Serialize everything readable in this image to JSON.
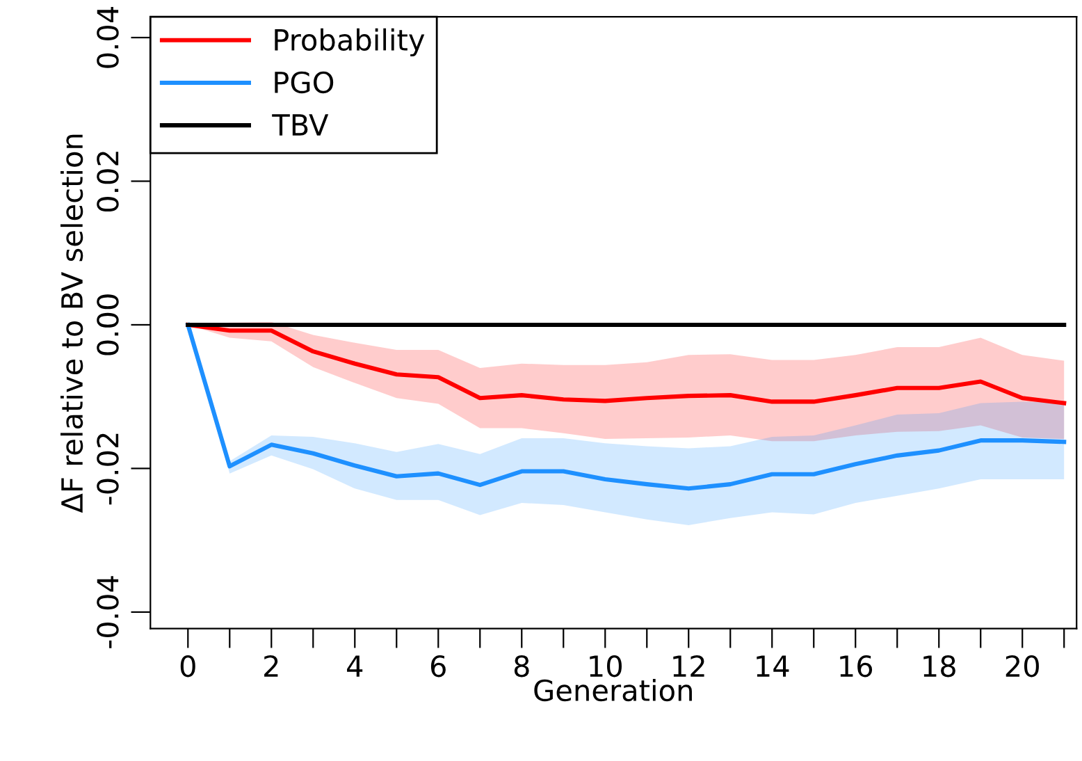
{
  "chart_data": {
    "type": "line",
    "xlabel": "Generation",
    "ylabel": "ΔF relative to BV selection",
    "x": [
      0,
      1,
      2,
      3,
      4,
      5,
      6,
      7,
      8,
      9,
      10,
      11,
      12,
      13,
      14,
      15,
      16,
      17,
      18,
      19,
      20,
      21
    ],
    "series": [
      {
        "name": "Probability",
        "color": "#ff0000",
        "values": [
          0,
          -0.0008,
          -0.0008,
          -0.0037,
          -0.0054,
          -0.0069,
          -0.0073,
          -0.0102,
          -0.0098,
          -0.0104,
          -0.0106,
          -0.0102,
          -0.0099,
          -0.0098,
          -0.0107,
          -0.0107,
          -0.0098,
          -0.0088,
          -0.0088,
          -0.0079,
          -0.0102,
          -0.0109
        ],
        "upper": [
          0,
          0.0003,
          0.0004,
          -0.0014,
          -0.0025,
          -0.0035,
          -0.0035,
          -0.006,
          -0.0054,
          -0.0056,
          -0.0056,
          -0.0052,
          -0.0042,
          -0.0041,
          -0.0049,
          -0.0049,
          -0.0042,
          -0.0031,
          -0.0031,
          -0.0018,
          -0.0042,
          -0.005
        ],
        "lower": [
          0,
          -0.0018,
          -0.0023,
          -0.0059,
          -0.0081,
          -0.0102,
          -0.011,
          -0.0144,
          -0.0144,
          -0.0151,
          -0.0159,
          -0.0158,
          -0.0157,
          -0.0154,
          -0.0162,
          -0.0162,
          -0.0154,
          -0.0149,
          -0.0148,
          -0.014,
          -0.0157,
          -0.0159
        ]
      },
      {
        "name": "PGO",
        "color": "#1e90ff",
        "values": [
          0,
          -0.0197,
          -0.0167,
          -0.0179,
          -0.0196,
          -0.0211,
          -0.0207,
          -0.0223,
          -0.0204,
          -0.0204,
          -0.0215,
          -0.0222,
          -0.0228,
          -0.0222,
          -0.0208,
          -0.0208,
          -0.0194,
          -0.0182,
          -0.0175,
          -0.0161,
          -0.0161,
          -0.0163
        ],
        "upper": [
          0,
          -0.019,
          -0.0154,
          -0.0156,
          -0.0165,
          -0.0177,
          -0.0166,
          -0.018,
          -0.0158,
          -0.0158,
          -0.0165,
          -0.0169,
          -0.0172,
          -0.0169,
          -0.0156,
          -0.0154,
          -0.014,
          -0.0125,
          -0.0123,
          -0.0109,
          -0.0107,
          -0.0108
        ],
        "lower": [
          0,
          -0.0207,
          -0.0182,
          -0.0201,
          -0.0228,
          -0.0244,
          -0.0244,
          -0.0265,
          -0.0248,
          -0.0251,
          -0.0261,
          -0.0271,
          -0.0279,
          -0.0269,
          -0.0261,
          -0.0264,
          -0.0248,
          -0.0238,
          -0.0228,
          -0.0215,
          -0.0215,
          -0.0215
        ]
      },
      {
        "name": "TBV",
        "color": "#000000",
        "values": [
          0,
          0,
          0,
          0,
          0,
          0,
          0,
          0,
          0,
          0,
          0,
          0,
          0,
          0,
          0,
          0,
          0,
          0,
          0,
          0,
          0,
          0
        ]
      }
    ],
    "xlim": [
      -0.9,
      21.3
    ],
    "ylim": [
      -0.0423,
      0.0429
    ],
    "xticks": [
      0,
      {
        "value": 1,
        "label": null
      },
      2,
      {
        "value": 3,
        "label": null
      },
      4,
      {
        "value": 5,
        "label": null
      },
      6,
      {
        "value": 7,
        "label": null
      },
      8,
      {
        "value": 9,
        "label": null
      },
      10,
      {
        "value": 11,
        "label": null
      },
      12,
      {
        "value": 13,
        "label": null
      },
      14,
      {
        "value": 15,
        "label": null
      },
      16,
      {
        "value": 17,
        "label": null
      },
      18,
      {
        "value": 19,
        "label": null
      },
      20,
      {
        "value": 21,
        "label": null
      }
    ],
    "yticks": [
      {
        "value": -0.04,
        "label": "-0.04"
      },
      {
        "value": -0.02,
        "label": "-0.02"
      },
      {
        "value": 0,
        "label": "0.00"
      },
      {
        "value": 0.02,
        "label": "0.02"
      },
      {
        "value": 0.04,
        "label": "0.04"
      }
    ],
    "legend": "top left",
    "grid": false
  }
}
